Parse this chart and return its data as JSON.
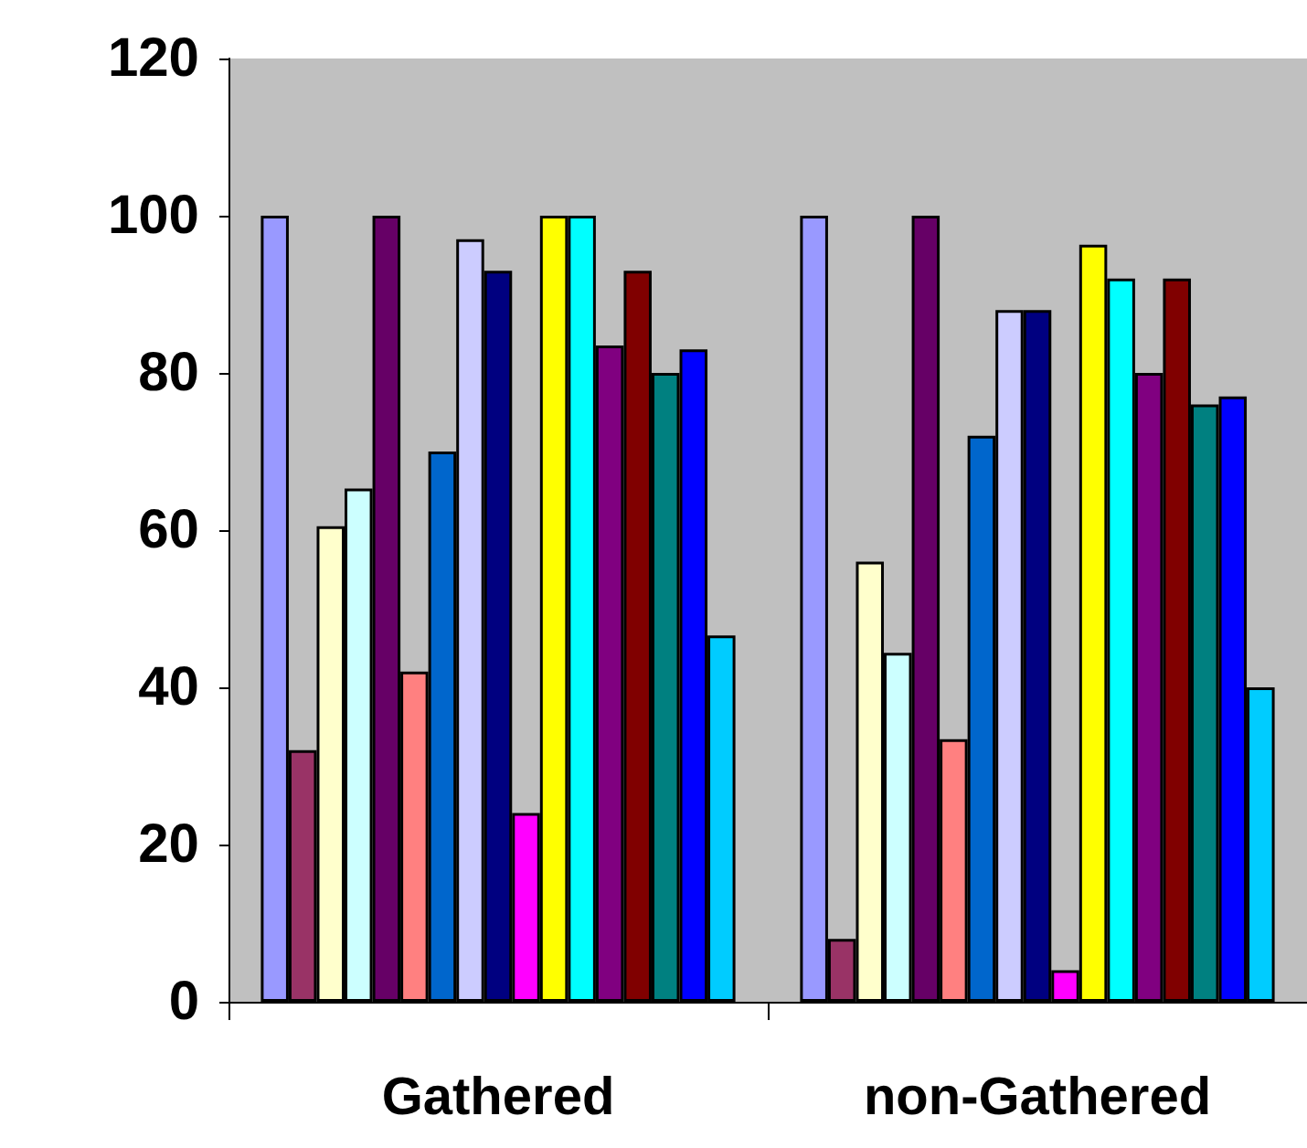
{
  "chart_data": {
    "type": "bar",
    "categories": [
      "Gathered",
      "non-Gathered"
    ],
    "series": [
      {
        "color": "#9999ff",
        "values": [
          100,
          100
        ]
      },
      {
        "color": "#993366",
        "values": [
          32,
          8
        ]
      },
      {
        "color": "#ffffcc",
        "values": [
          60.5,
          56
        ]
      },
      {
        "color": "#ccffff",
        "values": [
          65.3,
          44.4
        ]
      },
      {
        "color": "#660066",
        "values": [
          100,
          100
        ]
      },
      {
        "color": "#ff8080",
        "values": [
          42,
          33.4
        ]
      },
      {
        "color": "#0066cc",
        "values": [
          70,
          72
        ]
      },
      {
        "color": "#ccccff",
        "values": [
          97,
          88
        ]
      },
      {
        "color": "#000080",
        "values": [
          93,
          88
        ]
      },
      {
        "color": "#ff00ff",
        "values": [
          24,
          4
        ]
      },
      {
        "color": "#ffff00",
        "values": [
          100,
          96.3
        ]
      },
      {
        "color": "#00ffff",
        "values": [
          100,
          92
        ]
      },
      {
        "color": "#800080",
        "values": [
          83.5,
          80
        ]
      },
      {
        "color": "#800000",
        "values": [
          93,
          92
        ]
      },
      {
        "color": "#008080",
        "values": [
          80,
          76
        ]
      },
      {
        "color": "#0000ff",
        "values": [
          83,
          77
        ]
      },
      {
        "color": "#00ccff",
        "values": [
          46.6,
          40
        ]
      }
    ],
    "ylim": [
      0,
      120
    ],
    "yticks": [
      0,
      20,
      40,
      60,
      80,
      100,
      120
    ],
    "grid": false
  }
}
